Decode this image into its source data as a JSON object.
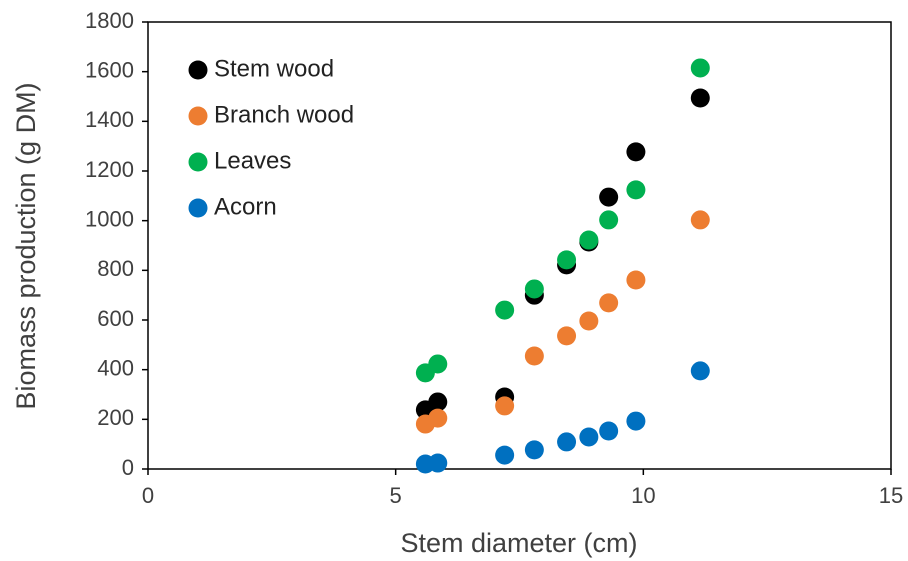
{
  "chart_data": {
    "type": "scatter",
    "x_label": "Stem diameter (cm)",
    "y_label": "Biomass production (g DM)",
    "x": [
      5.6,
      5.85,
      7.2,
      7.8,
      8.45,
      8.9,
      9.3,
      9.85,
      11.15
    ],
    "series": [
      {
        "name": "Stem wood",
        "color": "#000000",
        "values": [
          238,
          270,
          290,
          700,
          822,
          914,
          1095,
          1277,
          1494
        ]
      },
      {
        "name": "Branch wood",
        "color": "#ed7d31",
        "values": [
          181,
          205,
          254,
          455,
          536,
          596,
          669,
          761,
          1003
        ]
      },
      {
        "name": "Leaves",
        "color": "#00b050",
        "values": [
          387,
          423,
          640,
          725,
          842,
          922,
          1003,
          1124,
          1615
        ]
      },
      {
        "name": "Acorn",
        "color": "#0070c0",
        "values": [
          20,
          24,
          56,
          77,
          109,
          129,
          153,
          193,
          395
        ]
      }
    ],
    "xlim": [
      0,
      15
    ],
    "xticks": [
      0,
      5,
      10,
      15
    ],
    "ylim": [
      0,
      1800
    ],
    "yticks": [
      0,
      200,
      400,
      600,
      800,
      1000,
      1200,
      1400,
      1600,
      1800
    ],
    "grid": false,
    "legend": "top-left"
  }
}
